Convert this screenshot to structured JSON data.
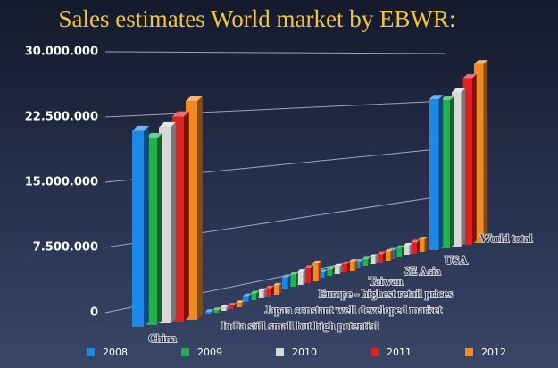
{
  "chart_data": {
    "type": "bar3d",
    "title": "Sales estimates World market by EBWR:",
    "categories": [
      "China",
      "India still small but high potential",
      "Japan constant well developed market",
      "Europe - highest retail prices",
      "Taiwan",
      "SE Asia",
      "USA",
      "World total"
    ],
    "series": [
      {
        "name": "2008",
        "color": "#1e88e5",
        "values": [
          21500000,
          300000,
          700000,
          1400000,
          800000,
          900000,
          1300000,
          24500000
        ]
      },
      {
        "name": "2009",
        "color": "#22b24c",
        "values": [
          20500000,
          300000,
          800000,
          1500000,
          900000,
          1000000,
          1400000,
          24000000
        ]
      },
      {
        "name": "2010",
        "color": "#d8d8d8",
        "values": [
          21500000,
          400000,
          900000,
          1700000,
          1000000,
          1100000,
          1500000,
          25000000
        ]
      },
      {
        "name": "2011",
        "color": "#e02020",
        "values": [
          22500000,
          400000,
          1000000,
          1900000,
          1100000,
          1200000,
          1700000,
          27000000
        ]
      },
      {
        "name": "2012",
        "color": "#f08a24",
        "values": [
          24000000,
          500000,
          1100000,
          2300000,
          1200000,
          1300000,
          1900000,
          29000000
        ]
      }
    ],
    "ylim": [
      0,
      30000000
    ],
    "yticks": [
      0,
      {
        "value": 7500000,
        "label": "7.500.000"
      },
      {
        "value": 15000000,
        "label": "15.000.000"
      },
      {
        "value": 22500000,
        "label": "22.500.000"
      },
      {
        "value": 30000000,
        "label": "30.000.000"
      }
    ],
    "grid": true
  }
}
